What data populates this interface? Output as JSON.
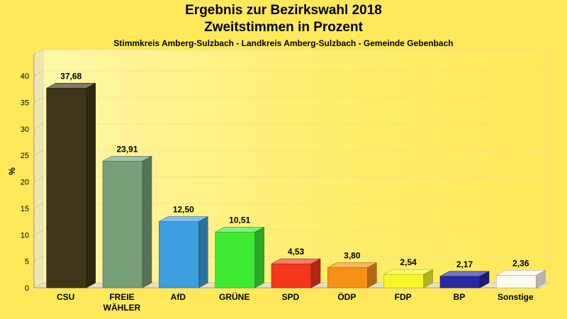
{
  "chart_data": {
    "type": "bar",
    "title": "Ergebnis zur Bezirkswahl 2018",
    "subtitle": "Zweitstimmen in Prozent",
    "subtitle2": "Stimmkreis Amberg-Sulzbach - Landkreis Amberg-Sulzbach - Gemeinde Gebenbach",
    "ylabel": "%",
    "ylim": [
      0,
      40
    ],
    "yticks": [
      0,
      5,
      10,
      15,
      20,
      25,
      30,
      35,
      40
    ],
    "grid": true,
    "categories": [
      [
        "CSU"
      ],
      [
        "FREIE",
        "WÄHLER"
      ],
      [
        "AfD"
      ],
      [
        "GRÜNE"
      ],
      [
        "SPD"
      ],
      [
        "ÖDP"
      ],
      [
        "FDP"
      ],
      [
        "BP"
      ],
      [
        "Sonstige"
      ]
    ],
    "values": [
      37.68,
      23.91,
      12.5,
      10.51,
      4.53,
      3.8,
      2.54,
      2.17,
      2.36
    ],
    "value_labels": [
      "37,68",
      "23,91",
      "12,50",
      "10,51",
      "4,53",
      "3,80",
      "2,54",
      "2,17",
      "2,36"
    ],
    "colors": [
      "#3d361a",
      "#769f78",
      "#3d9ee0",
      "#3cea33",
      "#f4361e",
      "#f59216",
      "#f7f72a",
      "#2828a3",
      "#fbfbef"
    ]
  }
}
